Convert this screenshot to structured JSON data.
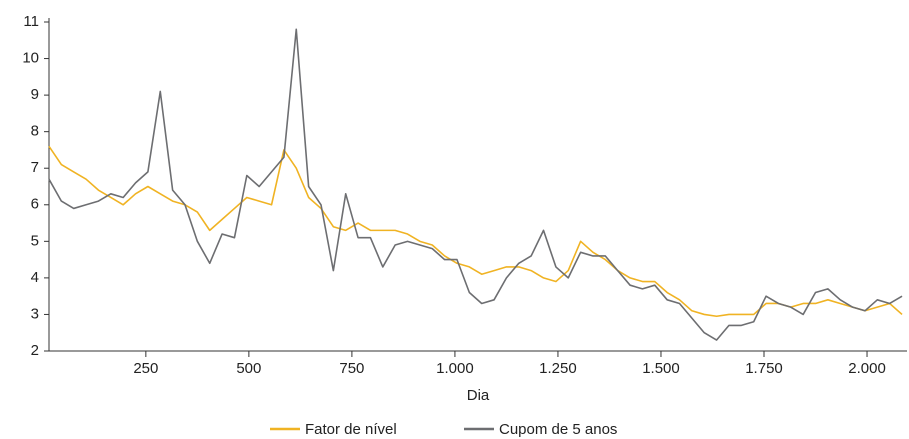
{
  "chart_data": {
    "type": "line",
    "x_label": "Dia",
    "x": [
      15,
      45,
      75,
      105,
      135,
      165,
      195,
      225,
      255,
      285,
      315,
      345,
      375,
      405,
      435,
      465,
      495,
      525,
      555,
      585,
      615,
      645,
      675,
      705,
      735,
      765,
      795,
      825,
      855,
      885,
      915,
      945,
      975,
      1005,
      1035,
      1065,
      1095,
      1125,
      1155,
      1185,
      1215,
      1245,
      1275,
      1305,
      1335,
      1365,
      1395,
      1425,
      1455,
      1485,
      1515,
      1545,
      1575,
      1605,
      1635,
      1665,
      1695,
      1725,
      1755,
      1785,
      1815,
      1845,
      1875,
      1905,
      1935,
      1965,
      1995,
      2025,
      2055,
      2085
    ],
    "series": [
      {
        "name": "Fator de nível",
        "color": "#f0b323",
        "values": [
          7.6,
          7.1,
          6.9,
          6.7,
          6.4,
          6.2,
          6.0,
          6.3,
          6.5,
          6.3,
          6.1,
          6.0,
          5.8,
          5.3,
          5.6,
          5.9,
          6.2,
          6.1,
          6.0,
          7.5,
          7.0,
          6.2,
          5.9,
          5.4,
          5.3,
          5.5,
          5.3,
          5.3,
          5.3,
          5.2,
          5.0,
          4.9,
          4.6,
          4.4,
          4.3,
          4.1,
          4.2,
          4.3,
          4.3,
          4.2,
          4.0,
          3.9,
          4.2,
          5.0,
          4.7,
          4.5,
          4.2,
          4.0,
          3.9,
          3.9,
          3.6,
          3.4,
          3.1,
          3.0,
          2.95,
          3.0,
          3.0,
          3.0,
          3.3,
          3.3,
          3.2,
          3.3,
          3.3,
          3.4,
          3.3,
          3.2,
          3.1,
          3.2,
          3.3,
          3.0
        ]
      },
      {
        "name": "Cupom de 5 anos",
        "color": "#6d6e71",
        "values": [
          6.7,
          6.1,
          5.9,
          6.0,
          6.1,
          6.3,
          6.2,
          6.6,
          6.9,
          9.1,
          6.4,
          6.0,
          5.0,
          4.4,
          5.2,
          5.1,
          6.8,
          6.5,
          6.9,
          7.3,
          10.8,
          6.5,
          6.0,
          4.2,
          6.3,
          5.1,
          5.1,
          4.3,
          4.9,
          5.0,
          4.9,
          4.8,
          4.5,
          4.5,
          3.6,
          3.3,
          3.4,
          4.0,
          4.4,
          4.6,
          5.3,
          4.3,
          4.0,
          4.7,
          4.6,
          4.6,
          4.2,
          3.8,
          3.7,
          3.8,
          3.4,
          3.3,
          2.9,
          2.5,
          2.3,
          2.7,
          2.7,
          2.8,
          3.5,
          3.3,
          3.2,
          3.0,
          3.6,
          3.7,
          3.4,
          3.2,
          3.1,
          3.4,
          3.3,
          3.5
        ]
      }
    ],
    "xlim": [
      15,
      2097
    ],
    "xticks": [
      250,
      500,
      750,
      {
        "value": 1000,
        "label": "1.000"
      },
      {
        "value": 1250,
        "label": "1.250"
      },
      {
        "value": 1500,
        "label": "1.500"
      },
      {
        "value": 1750,
        "label": "1.750"
      },
      {
        "value": 2000,
        "label": "2.000"
      }
    ],
    "ylim": [
      2,
      11
    ],
    "yticks": [
      2,
      3,
      4,
      5,
      6,
      7,
      8,
      9,
      10,
      11
    ],
    "legend": "bottom"
  }
}
